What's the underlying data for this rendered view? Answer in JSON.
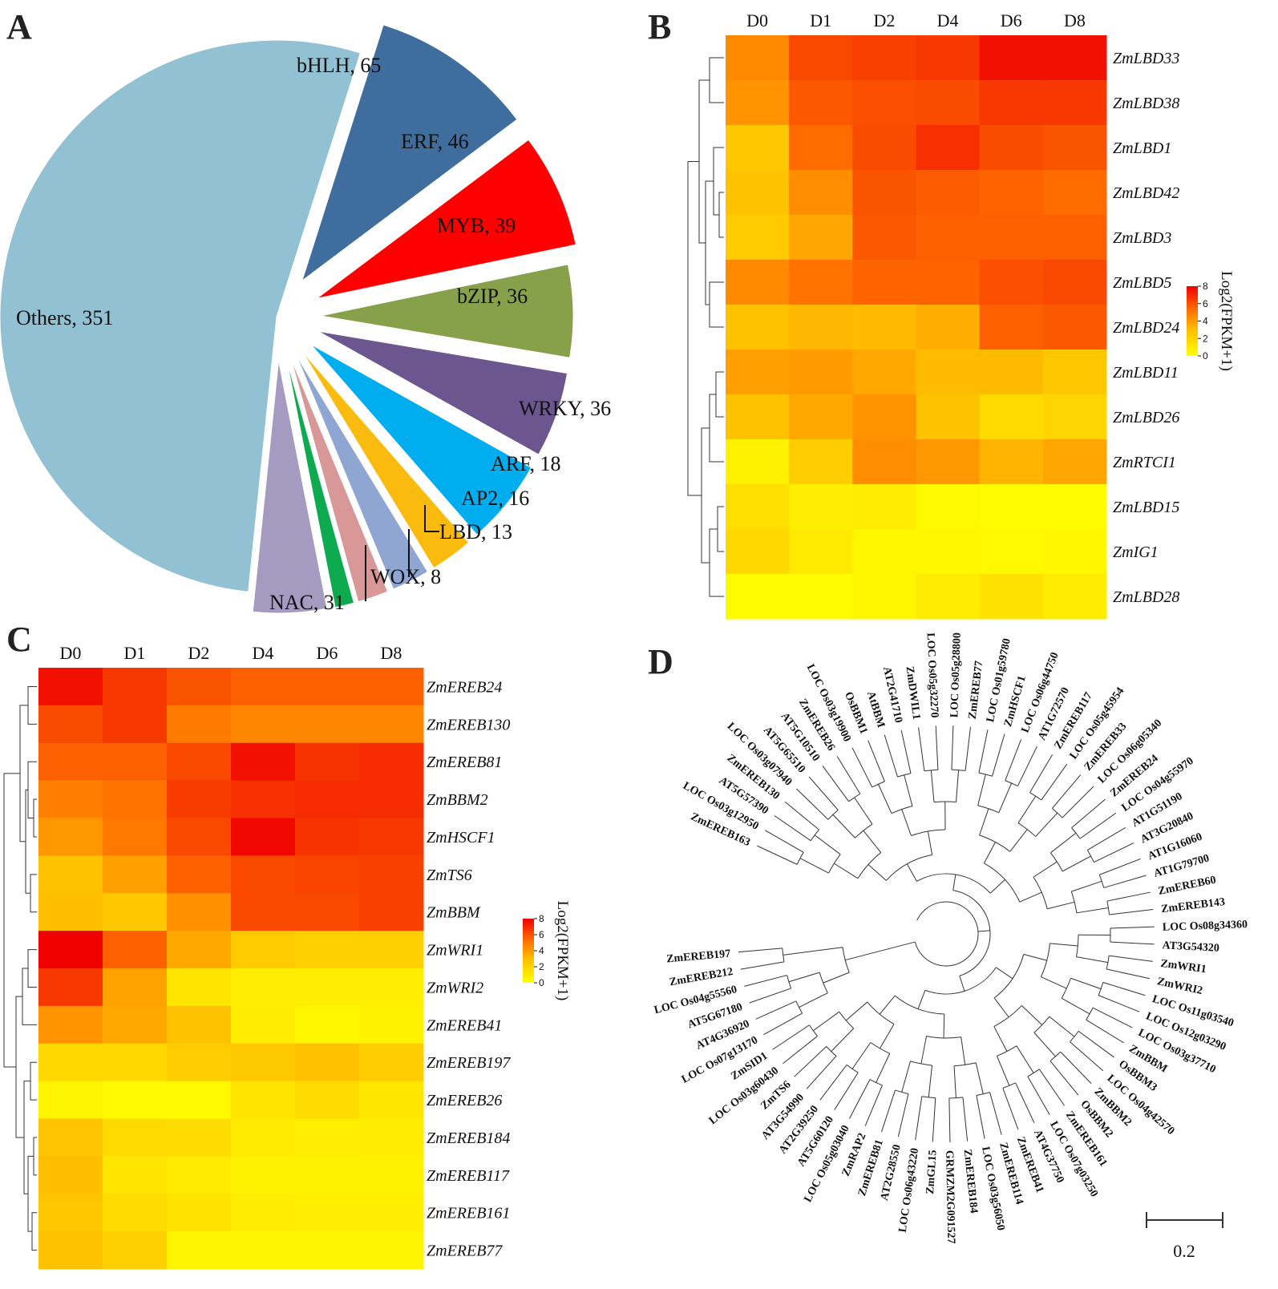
{
  "panels": {
    "a": "A",
    "b": "B",
    "c": "C",
    "d": "D"
  },
  "chart_data": [
    {
      "type": "pie",
      "title": "",
      "categories": [
        "Others",
        "bHLH",
        "ERF",
        "MYB",
        "bZIP",
        "WRKY",
        "ARF",
        "AP2",
        "LBD",
        "WOX",
        "NAC"
      ],
      "values": [
        351,
        65,
        46,
        39,
        36,
        36,
        18,
        16,
        13,
        8,
        31
      ],
      "labels": [
        "Others, 351",
        "bHLH, 65",
        "ERF, 46",
        "MYB, 39",
        "bZIP, 36",
        "WRKY, 36",
        "ARF, 18",
        "AP2, 16",
        "LBD, 13",
        "WOX, 8",
        "NAC, 31"
      ],
      "colors": [
        "#92c1d3",
        "#3f6d9e",
        "#ff0000",
        "#86a14a",
        "#6c5690",
        "#00adef",
        "#fbbb0e",
        "#8fa6d2",
        "#d89897",
        "#0eaa4f",
        "#a59ac0"
      ]
    },
    {
      "type": "heatmap",
      "x": [
        "D0",
        "D1",
        "D2",
        "D4",
        "D6",
        "D8"
      ],
      "y": [
        "ZmLBD33",
        "ZmLBD38",
        "ZmLBD1",
        "ZmLBD42",
        "ZmLBD3",
        "ZmLBD5",
        "ZmLBD24",
        "ZmLBD11",
        "ZmLBD26",
        "ZmRTCI1",
        "ZmLBD15",
        "ZmIG1",
        "ZmLBD28"
      ],
      "values": [
        [
          4.5,
          6.2,
          6.4,
          6.6,
          7.6,
          7.6
        ],
        [
          4.2,
          5.8,
          6.0,
          6.1,
          6.6,
          6.6
        ],
        [
          2.6,
          5.3,
          6.1,
          6.8,
          6.1,
          5.9
        ],
        [
          2.8,
          4.4,
          5.9,
          5.7,
          5.5,
          5.3
        ],
        [
          2.4,
          3.7,
          5.8,
          5.6,
          5.6,
          5.6
        ],
        [
          4.5,
          5.1,
          5.5,
          5.5,
          6.0,
          6.2
        ],
        [
          2.8,
          3.2,
          3.1,
          3.5,
          5.6,
          5.8
        ],
        [
          3.9,
          4.0,
          3.6,
          3.1,
          3.1,
          2.6
        ],
        [
          2.8,
          3.6,
          4.2,
          2.8,
          1.7,
          2.0
        ],
        [
          0.6,
          2.3,
          4.4,
          4.1,
          3.3,
          3.7
        ],
        [
          1.5,
          0.8,
          0.9,
          0.3,
          0.2,
          0.2
        ],
        [
          1.8,
          1.0,
          0.4,
          0.4,
          0.3,
          0.4
        ],
        [
          0.2,
          0.2,
          0.4,
          0.9,
          1.4,
          0.9
        ]
      ],
      "colorbar": {
        "title": "Log2(FPKM+1)",
        "range": [
          0,
          8
        ],
        "ticks": [
          "8",
          "6",
          "4",
          "2",
          "0"
        ]
      }
    },
    {
      "type": "heatmap",
      "x": [
        "D0",
        "D1",
        "D2",
        "D4",
        "D6",
        "D8"
      ],
      "y": [
        "ZmEREB24",
        "ZmEREB130",
        "ZmEREB81",
        "ZmBBM2",
        "ZmHSCF1",
        "ZmTS6",
        "ZmBBM",
        "ZmWRI1",
        "ZmWRI2",
        "ZmEREB41",
        "ZmEREB197",
        "ZmEREB26",
        "ZmEREB184",
        "ZmEREB117",
        "ZmEREB161",
        "ZmEREB77"
      ],
      "values": [
        [
          7.6,
          6.6,
          5.9,
          5.6,
          5.6,
          5.6
        ],
        [
          6.1,
          6.6,
          4.9,
          4.6,
          4.6,
          4.6
        ],
        [
          5.6,
          5.6,
          6.2,
          7.6,
          6.7,
          6.9
        ],
        [
          4.8,
          5.1,
          6.5,
          6.8,
          6.9,
          6.9
        ],
        [
          4.1,
          5.0,
          6.2,
          7.8,
          6.7,
          6.6
        ],
        [
          2.8,
          3.9,
          5.6,
          6.2,
          6.3,
          6.4
        ],
        [
          3.0,
          2.6,
          4.3,
          6.2,
          6.2,
          6.4
        ],
        [
          8.0,
          5.6,
          3.6,
          2.4,
          2.2,
          2.2
        ],
        [
          6.6,
          3.8,
          1.2,
          0.8,
          0.8,
          0.8
        ],
        [
          4.2,
          3.6,
          2.8,
          0.9,
          0.4,
          0.6
        ],
        [
          1.8,
          1.8,
          2.3,
          2.5,
          2.9,
          2.3
        ],
        [
          0.5,
          0.3,
          0.3,
          1.2,
          1.6,
          1.1
        ],
        [
          2.7,
          1.7,
          1.6,
          1.0,
          0.8,
          0.9
        ],
        [
          3.0,
          1.2,
          1.0,
          0.6,
          0.6,
          0.6
        ],
        [
          2.6,
          1.6,
          1.3,
          0.9,
          0.8,
          0.8
        ],
        [
          2.8,
          2.2,
          0.5,
          0.5,
          0.5,
          0.5
        ]
      ],
      "colorbar": {
        "title": "Log2(FPKM+1)",
        "range": [
          0,
          8
        ],
        "ticks": [
          "8",
          "6",
          "4",
          "2",
          "0"
        ]
      }
    },
    {
      "type": "tree",
      "scale_bar": "0.2",
      "leaves": [
        "ZmEREB163",
        "LOC Os03g12950",
        "AT5G57390",
        "ZmEREB130",
        "LOC Os03g07940",
        "AT5G65510",
        "AT5G10510",
        "ZmEREB26",
        "LOC Os03g19900",
        "OsBBM1",
        "AtBBM",
        "AT2G41710",
        "ZmDWIL1",
        "LOC Os05g32270",
        "LOC Os05g28800",
        "ZmEREB77",
        "LOC Os01g59780",
        "ZmHSCF1",
        "LOC Os06g44750",
        "AT1G72570",
        "ZmEREB117",
        "LOC Os05g45954",
        "ZmEREB33",
        "LOC Os06g05340",
        "ZmEREB24",
        "LOC Os04g55970",
        "AT1G51190",
        "AT3G20840",
        "AT1G16060",
        "AT1G79700",
        "ZmEREB60",
        "ZmEREB143",
        "LOC Os08g34360",
        "AT3G54320",
        "ZmWRI1",
        "ZmWRI2",
        "LOC Os11g03540",
        "LOC Os12g03290",
        "LOC Os03g37710",
        "ZmBBM",
        "OsBBM3",
        "LOC Os04g42570",
        "ZmBBM2",
        "OsBBM2",
        "ZmEREB161",
        "LOC Os07g03250",
        "AT4G37750",
        "ZmEREB41",
        "ZmEREB114",
        "LOC Os03g56050",
        "ZmEREB184",
        "GRMZM2G091527",
        "ZmGL15",
        "LOC Os06g43220",
        "AT2G28550",
        "ZmEREB81",
        "ZmRAP2",
        "LOC Os05g03040",
        "AT5G60120",
        "AT2G39250",
        "AT3G54990",
        "ZmTS6",
        "LOC Os03g60430",
        "ZmSID1",
        "LOC Os07g13170",
        "AT4G36920",
        "AT5G67180",
        "LOC Os04g55560",
        "ZmEREB212",
        "ZmEREB197"
      ],
      "highlight": [
        "ZmBBM",
        "ZmBBM2"
      ]
    }
  ]
}
